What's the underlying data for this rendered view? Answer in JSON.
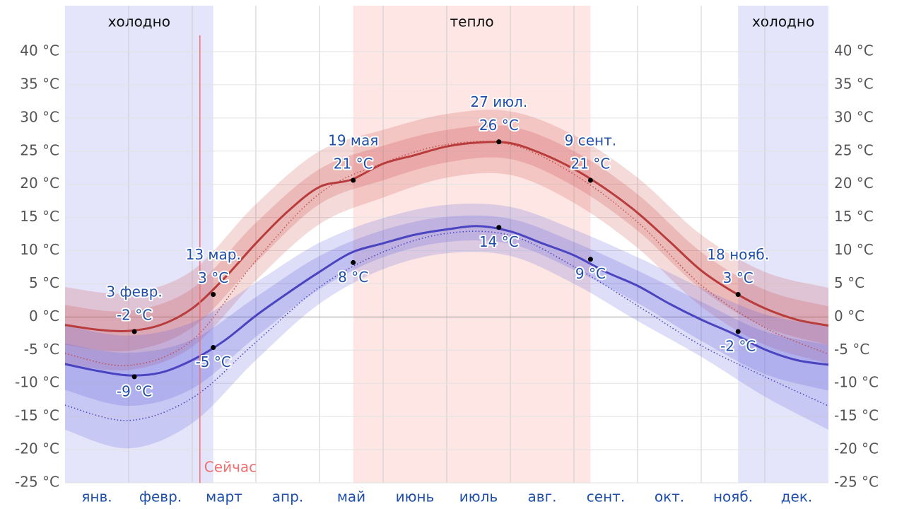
{
  "chart_data": {
    "type": "line",
    "categories": [
      "янв.",
      "февр.",
      "март",
      "апр.",
      "май",
      "июнь",
      "июль",
      "авг.",
      "сент.",
      "окт.",
      "нояб.",
      "дек."
    ],
    "xlim": [
      0,
      12
    ],
    "ylim": [
      -25,
      40
    ],
    "yticks": [
      {
        "value": 40,
        "label": "40 °C"
      },
      {
        "value": 35,
        "label": "35 °C"
      },
      {
        "value": 30,
        "label": "30 °C"
      },
      {
        "value": 25,
        "label": "25 °C"
      },
      {
        "value": 20,
        "label": "20 °C"
      },
      {
        "value": 15,
        "label": "15 °C"
      },
      {
        "value": 10,
        "label": "10 °C"
      },
      {
        "value": 5,
        "label": "5 °C"
      },
      {
        "value": 0,
        "label": "0 °C"
      },
      {
        "value": -5,
        "label": "-5 °C"
      },
      {
        "value": -10,
        "label": "-10 °C"
      },
      {
        "value": -15,
        "label": "-15 °C"
      },
      {
        "value": -20,
        "label": "-20 °C"
      },
      {
        "value": -25,
        "label": "-25 °C"
      }
    ],
    "grid": true,
    "regions": [
      {
        "label": "холодно",
        "x": [
          0,
          2.33
        ],
        "color": "#e4e4fa"
      },
      {
        "label": "тепло",
        "x": [
          4.53,
          8.26
        ],
        "color": "#fde6e4"
      },
      {
        "label": "холодно",
        "x": [
          10.58,
          12
        ],
        "color": "#e4e4fa"
      }
    ],
    "now": {
      "label": "Сейчас",
      "x": 2.12,
      "color": "#f07070"
    },
    "bands": [
      {
        "color": "rgba(205,70,70,0.2)",
        "x": [
          0,
          1,
          2,
          3,
          4,
          5,
          6,
          7,
          8,
          9,
          10,
          11,
          12
        ],
        "upper": [
          4.5,
          3.6,
          7.0,
          17.0,
          25.0,
          28.2,
          30.6,
          31.0,
          27.4,
          21.0,
          12.4,
          6.8,
          4.4
        ],
        "lower": [
          -7.0,
          -8.0,
          -4.5,
          5.5,
          14.0,
          18.0,
          21.0,
          21.4,
          17.2,
          10.4,
          1.6,
          -4.2,
          -7.0
        ]
      },
      {
        "color": "rgba(205,70,70,0.22)",
        "x": [
          0,
          1,
          2,
          3,
          4,
          5,
          6,
          7,
          8,
          9,
          10,
          11,
          12
        ],
        "upper": [
          1.8,
          0.9,
          4.3,
          14.2,
          22.3,
          25.8,
          28.2,
          28.7,
          25.0,
          18.5,
          9.8,
          4.1,
          1.6
        ],
        "lower": [
          -4.2,
          -5.1,
          -1.6,
          8.2,
          17.0,
          20.6,
          23.3,
          23.8,
          19.7,
          13.0,
          4.2,
          -1.5,
          -4.2
        ]
      },
      {
        "color": "rgba(90,90,220,0.2)",
        "x": [
          0,
          1,
          2,
          3,
          4,
          5,
          6,
          7,
          8,
          9,
          10,
          11,
          12
        ],
        "upper": [
          -1.3,
          -2.8,
          -0.8,
          5.2,
          11.2,
          14.9,
          16.9,
          16.6,
          13.2,
          9.0,
          4.4,
          0.4,
          -1.4
        ],
        "lower": [
          -17.0,
          -19.8,
          -16.0,
          -6.5,
          2.0,
          7.2,
          9.6,
          9.2,
          5.0,
          -0.6,
          -6.0,
          -12.0,
          -17.0
        ]
      },
      {
        "color": "rgba(90,90,220,0.22)",
        "x": [
          0,
          1,
          2,
          3,
          4,
          5,
          6,
          7,
          8,
          9,
          10,
          11,
          12
        ],
        "upper": [
          -4.0,
          -5.4,
          -3.4,
          3.0,
          9.2,
          13.1,
          15.1,
          14.8,
          11.3,
          7.0,
          2.3,
          -2.2,
          -4.2
        ],
        "lower": [
          -11.0,
          -13.4,
          -10.8,
          -3.0,
          4.2,
          9.0,
          11.3,
          11.0,
          7.1,
          2.1,
          -3.6,
          -8.6,
          -11.1
        ]
      }
    ],
    "series": [
      {
        "color": "#c0504d",
        "style": "dotted",
        "x": [
          0,
          1,
          2,
          3,
          4,
          5,
          6,
          7,
          8,
          9,
          10,
          11,
          12
        ],
        "values": [
          -5.5,
          -7.3,
          -3.5,
          8.5,
          18.6,
          23.2,
          26.0,
          26.0,
          21.5,
          14.3,
          4.8,
          -1.6,
          -5.6
        ]
      },
      {
        "color": "#4a44c0",
        "style": "dotted",
        "x": [
          0,
          1,
          2,
          3,
          4,
          5,
          6,
          7,
          8,
          9,
          10,
          11,
          12
        ],
        "values": [
          -13.3,
          -15.6,
          -12.2,
          -3.8,
          4.5,
          9.8,
          12.6,
          12.3,
          7.6,
          1.7,
          -4.3,
          -9.0,
          -13.4
        ]
      },
      {
        "color": "#b83c3c",
        "style": "solid",
        "x": [
          0,
          0.5,
          1,
          1.5,
          2,
          2.5,
          3,
          3.5,
          4,
          4.5,
          5,
          5.5,
          6,
          6.5,
          7,
          7.5,
          8,
          8.5,
          9,
          9.5,
          10,
          10.5,
          11,
          11.5,
          12
        ],
        "values": [
          -1.2,
          -1.9,
          -2.1,
          -1.2,
          1.3,
          5.8,
          11.1,
          15.9,
          19.6,
          20.7,
          23.1,
          24.4,
          25.7,
          26.3,
          26.2,
          24.6,
          22.3,
          19.3,
          15.7,
          11.4,
          7.0,
          3.8,
          1.3,
          -0.4,
          -1.3
        ]
      },
      {
        "color": "#4a44c0",
        "style": "solid",
        "x": [
          0,
          0.5,
          1,
          1.5,
          2,
          2.5,
          3,
          3.5,
          4,
          4.5,
          5,
          5.5,
          6,
          6.5,
          7,
          7.5,
          8,
          8.5,
          9,
          9.5,
          10,
          10.5,
          11,
          11.5,
          12
        ],
        "values": [
          -7.1,
          -8.1,
          -8.8,
          -8.4,
          -6.5,
          -3.6,
          0.2,
          3.6,
          6.8,
          9.7,
          11.1,
          12.4,
          13.2,
          13.7,
          12.9,
          11.1,
          9.3,
          6.8,
          4.7,
          2.0,
          -0.4,
          -2.5,
          -4.9,
          -6.5,
          -7.2
        ]
      }
    ],
    "annotations": [
      {
        "date": "3 февр.",
        "label": "-2 °C",
        "x": 1.09,
        "y": -2.2,
        "position": "above"
      },
      {
        "date": "13 мар.",
        "label": "3 °C",
        "x": 2.33,
        "y": 3.4,
        "position": "above"
      },
      {
        "date": "19 мая",
        "label": "21 °C",
        "x": 4.53,
        "y": 20.6,
        "position": "above"
      },
      {
        "date": "27 июл.",
        "label": "26 °C",
        "x": 6.82,
        "y": 26.4,
        "position": "above"
      },
      {
        "date": "9 сент.",
        "label": "21 °C",
        "x": 8.26,
        "y": 20.6,
        "position": "above"
      },
      {
        "date": "18 нояб.",
        "label": "3 °C",
        "x": 10.58,
        "y": 3.4,
        "position": "above"
      },
      {
        "label": "-9 °C",
        "x": 1.09,
        "y": -9.0,
        "position": "below"
      },
      {
        "label": "-5 °C",
        "x": 2.33,
        "y": -4.6,
        "position": "below"
      },
      {
        "label": "8 °C",
        "x": 4.53,
        "y": 8.2,
        "position": "below"
      },
      {
        "label": "14 °C",
        "x": 6.82,
        "y": 13.5,
        "position": "below"
      },
      {
        "label": "9 °C",
        "x": 8.26,
        "y": 8.7,
        "position": "below"
      },
      {
        "label": "-2 °C",
        "x": 10.58,
        "y": -2.2,
        "position": "below"
      }
    ]
  }
}
